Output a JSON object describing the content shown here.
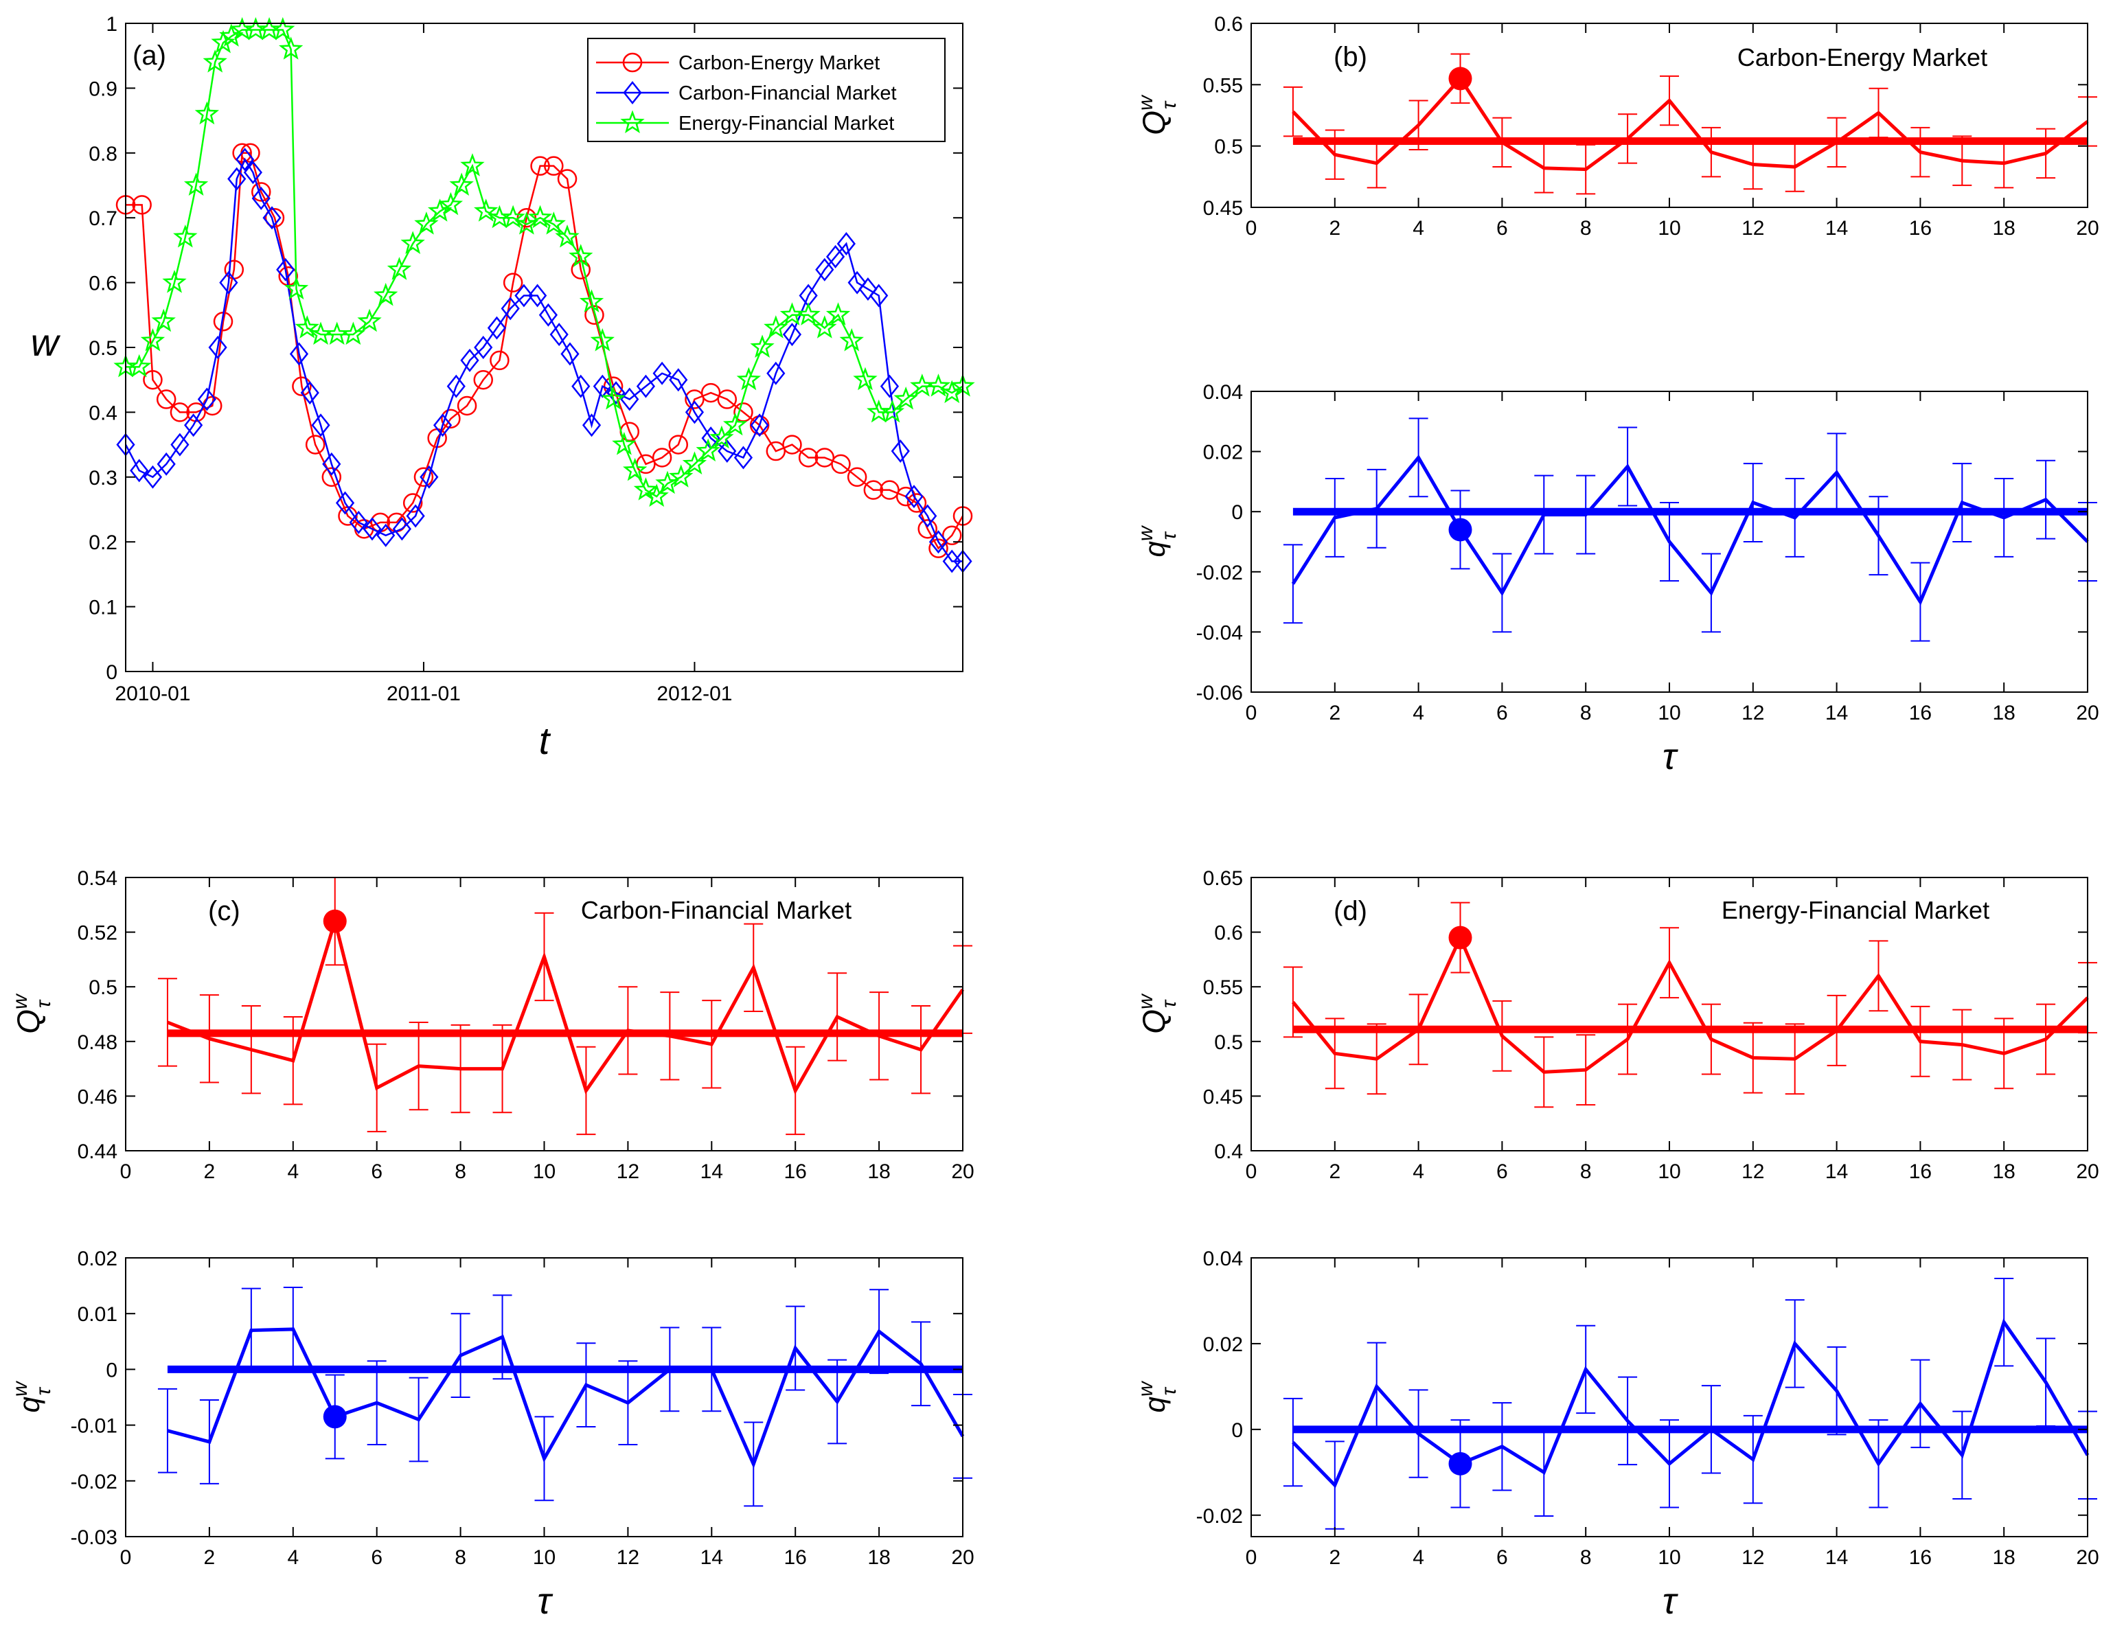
{
  "colors": {
    "ce": "#ff0000",
    "cf": "#0000ff",
    "ef": "#00ff00",
    "axis": "#000000"
  },
  "chart_data": [
    {
      "type": "line",
      "panel": "(a)",
      "title": "",
      "xlabel": "t",
      "ylabel": "w",
      "xlim": [
        2009.9,
        2012.99
      ],
      "ylim": [
        0,
        1
      ],
      "xticks": [
        2010.0,
        2011.0,
        2012.0
      ],
      "xticklabels": [
        "2010-01",
        "2011-01",
        "2012-01"
      ],
      "yticks": [
        0,
        0.1,
        0.2,
        0.3,
        0.4,
        0.5,
        0.6,
        0.7,
        0.8,
        0.9,
        1
      ],
      "yticklabels": [
        "0",
        "0.1",
        "0.2",
        "0.3",
        "0.4",
        "0.5",
        "0.6",
        "0.7",
        "0.8",
        "0.9",
        "1"
      ],
      "legend": "top-right",
      "series": [
        {
          "name": "Carbon-Energy Market",
          "color": "#ff0000",
          "marker": "circle",
          "x": [
            2009.9,
            2009.96,
            2010.0,
            2010.05,
            2010.1,
            2010.16,
            2010.22,
            2010.26,
            2010.3,
            2010.33,
            2010.36,
            2010.4,
            2010.45,
            2010.5,
            2010.55,
            2010.6,
            2010.66,
            2010.72,
            2010.78,
            2010.84,
            2010.9,
            2010.96,
            2011.0,
            2011.05,
            2011.1,
            2011.16,
            2011.22,
            2011.28,
            2011.33,
            2011.38,
            2011.43,
            2011.48,
            2011.53,
            2011.58,
            2011.63,
            2011.7,
            2011.76,
            2011.82,
            2011.88,
            2011.94,
            2012.0,
            2012.06,
            2012.12,
            2012.18,
            2012.24,
            2012.3,
            2012.36,
            2012.42,
            2012.48,
            2012.54,
            2012.6,
            2012.66,
            2012.72,
            2012.78,
            2012.82,
            2012.86,
            2012.9,
            2012.95,
            2012.99
          ],
          "y": [
            0.72,
            0.72,
            0.45,
            0.42,
            0.4,
            0.4,
            0.41,
            0.54,
            0.62,
            0.8,
            0.8,
            0.74,
            0.7,
            0.61,
            0.44,
            0.35,
            0.3,
            0.24,
            0.22,
            0.23,
            0.23,
            0.26,
            0.3,
            0.36,
            0.39,
            0.41,
            0.45,
            0.48,
            0.6,
            0.7,
            0.78,
            0.78,
            0.76,
            0.62,
            0.55,
            0.44,
            0.37,
            0.32,
            0.33,
            0.35,
            0.42,
            0.43,
            0.42,
            0.4,
            0.38,
            0.34,
            0.35,
            0.33,
            0.33,
            0.32,
            0.3,
            0.28,
            0.28,
            0.27,
            0.26,
            0.22,
            0.19,
            0.21,
            0.24
          ]
        },
        {
          "name": "Carbon-Financial Market",
          "color": "#0000ff",
          "marker": "diamond",
          "x": [
            2009.9,
            2009.95,
            2010.0,
            2010.05,
            2010.1,
            2010.15,
            2010.2,
            2010.24,
            2010.28,
            2010.31,
            2010.34,
            2010.37,
            2010.4,
            2010.44,
            2010.49,
            2010.54,
            2010.58,
            2010.62,
            2010.66,
            2010.71,
            2010.76,
            2010.81,
            2010.86,
            2010.92,
            2010.97,
            2011.02,
            2011.07,
            2011.12,
            2011.17,
            2011.22,
            2011.27,
            2011.32,
            2011.37,
            2011.42,
            2011.46,
            2011.5,
            2011.54,
            2011.58,
            2011.62,
            2011.66,
            2011.71,
            2011.76,
            2011.82,
            2011.88,
            2011.94,
            2012.0,
            2012.06,
            2012.12,
            2012.18,
            2012.24,
            2012.3,
            2012.36,
            2012.42,
            2012.48,
            2012.52,
            2012.56,
            2012.6,
            2012.64,
            2012.68,
            2012.72,
            2012.76,
            2012.81,
            2012.86,
            2012.9,
            2012.95,
            2012.99
          ],
          "y": [
            0.35,
            0.31,
            0.3,
            0.32,
            0.35,
            0.38,
            0.42,
            0.5,
            0.6,
            0.76,
            0.79,
            0.77,
            0.73,
            0.7,
            0.62,
            0.49,
            0.43,
            0.38,
            0.32,
            0.26,
            0.23,
            0.22,
            0.21,
            0.22,
            0.24,
            0.3,
            0.38,
            0.44,
            0.48,
            0.5,
            0.53,
            0.56,
            0.58,
            0.58,
            0.55,
            0.52,
            0.49,
            0.44,
            0.38,
            0.44,
            0.43,
            0.42,
            0.44,
            0.46,
            0.45,
            0.4,
            0.36,
            0.34,
            0.33,
            0.38,
            0.46,
            0.52,
            0.58,
            0.62,
            0.64,
            0.66,
            0.6,
            0.59,
            0.58,
            0.44,
            0.34,
            0.27,
            0.24,
            0.2,
            0.17,
            0.17
          ]
        },
        {
          "name": "Energy-Financial Market",
          "color": "#00ff00",
          "marker": "star",
          "x": [
            2009.9,
            2009.95,
            2010.0,
            2010.04,
            2010.08,
            2010.12,
            2010.16,
            2010.2,
            2010.23,
            2010.26,
            2010.29,
            2010.33,
            2010.38,
            2010.43,
            2010.48,
            2010.51,
            2010.53,
            2010.57,
            2010.62,
            2010.68,
            2010.74,
            2010.8,
            2010.86,
            2010.91,
            2010.96,
            2011.01,
            2011.06,
            2011.1,
            2011.14,
            2011.18,
            2011.23,
            2011.28,
            2011.33,
            2011.38,
            2011.43,
            2011.48,
            2011.53,
            2011.58,
            2011.62,
            2011.66,
            2011.7,
            2011.74,
            2011.78,
            2011.82,
            2011.86,
            2011.9,
            2011.95,
            2012.0,
            2012.05,
            2012.1,
            2012.15,
            2012.2,
            2012.25,
            2012.3,
            2012.36,
            2012.42,
            2012.48,
            2012.53,
            2012.58,
            2012.63,
            2012.68,
            2012.73,
            2012.78,
            2012.84,
            2012.9,
            2012.95,
            2012.99
          ],
          "y": [
            0.47,
            0.47,
            0.51,
            0.54,
            0.6,
            0.67,
            0.75,
            0.86,
            0.94,
            0.97,
            0.98,
            0.99,
            0.99,
            0.99,
            0.99,
            0.96,
            0.59,
            0.53,
            0.52,
            0.52,
            0.52,
            0.54,
            0.58,
            0.62,
            0.66,
            0.69,
            0.71,
            0.72,
            0.75,
            0.78,
            0.71,
            0.7,
            0.7,
            0.69,
            0.7,
            0.69,
            0.67,
            0.64,
            0.57,
            0.51,
            0.42,
            0.35,
            0.31,
            0.28,
            0.27,
            0.29,
            0.3,
            0.32,
            0.34,
            0.36,
            0.38,
            0.45,
            0.5,
            0.53,
            0.55,
            0.55,
            0.53,
            0.55,
            0.51,
            0.45,
            0.4,
            0.4,
            0.42,
            0.44,
            0.44,
            0.43,
            0.44
          ]
        }
      ]
    },
    {
      "type": "line",
      "panel": "(b)",
      "title": "Carbon-Energy Market",
      "xlabel": "",
      "ylabel": "Q_τ^w",
      "xlim": [
        0,
        20
      ],
      "ylim": [
        0.45,
        0.6
      ],
      "xticks": [
        0,
        2,
        4,
        6,
        8,
        10,
        12,
        14,
        16,
        18,
        20
      ],
      "yticks": [
        0.45,
        0.5,
        0.55,
        0.6
      ],
      "yticklabels": [
        "0.45",
        "0.5",
        "0.55",
        "0.6"
      ],
      "color": "#ff0000",
      "mean": 0.504,
      "highlight": {
        "x": 5,
        "y": 0.555
      },
      "x": [
        1,
        2,
        3,
        4,
        5,
        6,
        7,
        8,
        9,
        10,
        11,
        12,
        13,
        14,
        15,
        16,
        17,
        18,
        19,
        20
      ],
      "y": [
        0.528,
        0.493,
        0.486,
        0.517,
        0.555,
        0.503,
        0.482,
        0.481,
        0.506,
        0.537,
        0.495,
        0.485,
        0.483,
        0.503,
        0.527,
        0.495,
        0.488,
        0.486,
        0.494,
        0.52
      ],
      "err": [
        0.02,
        0.02,
        0.02,
        0.02,
        0.02,
        0.02,
        0.02,
        0.02,
        0.02,
        0.02,
        0.02,
        0.02,
        0.02,
        0.02,
        0.02,
        0.02,
        0.02,
        0.02,
        0.02,
        0.02
      ]
    },
    {
      "type": "line",
      "panel": "",
      "title": "",
      "xlabel": "τ",
      "ylabel": "q_τ^w",
      "xlim": [
        0,
        20
      ],
      "ylim": [
        -0.06,
        0.04
      ],
      "xticks": [
        0,
        2,
        4,
        6,
        8,
        10,
        12,
        14,
        16,
        18,
        20
      ],
      "yticks": [
        -0.06,
        -0.04,
        -0.02,
        0,
        0.02,
        0.04
      ],
      "yticklabels": [
        "-0.06",
        "-0.04",
        "-0.02",
        "0",
        "0.02",
        "0.04"
      ],
      "color": "#0000ff",
      "mean": 0.0,
      "highlight": {
        "x": 5,
        "y": -0.006
      },
      "x": [
        1,
        2,
        3,
        4,
        5,
        6,
        7,
        8,
        9,
        10,
        11,
        12,
        13,
        14,
        15,
        16,
        17,
        18,
        19,
        20
      ],
      "y": [
        -0.024,
        -0.002,
        0.001,
        0.018,
        -0.006,
        -0.027,
        -0.001,
        -0.001,
        0.015,
        -0.01,
        -0.027,
        0.003,
        -0.002,
        0.013,
        -0.008,
        -0.03,
        0.003,
        -0.002,
        0.004,
        -0.01
      ],
      "err": [
        0.013,
        0.013,
        0.013,
        0.013,
        0.013,
        0.013,
        0.013,
        0.013,
        0.013,
        0.013,
        0.013,
        0.013,
        0.013,
        0.013,
        0.013,
        0.013,
        0.013,
        0.013,
        0.013,
        0.013
      ]
    },
    {
      "type": "line",
      "panel": "(c)",
      "title": "Carbon-Financial Market",
      "xlabel": "",
      "ylabel": "Q_τ^w",
      "xlim": [
        0,
        20
      ],
      "ylim": [
        0.44,
        0.54
      ],
      "xticks": [
        0,
        2,
        4,
        6,
        8,
        10,
        12,
        14,
        16,
        18,
        20
      ],
      "yticks": [
        0.44,
        0.46,
        0.48,
        0.5,
        0.52,
        0.54
      ],
      "yticklabels": [
        "0.44",
        "0.46",
        "0.48",
        "0.5",
        "0.52",
        "0.54"
      ],
      "color": "#ff0000",
      "mean": 0.483,
      "highlight": {
        "x": 5,
        "y": 0.524
      },
      "x": [
        1,
        2,
        3,
        4,
        5,
        6,
        7,
        8,
        9,
        10,
        11,
        12,
        13,
        14,
        15,
        16,
        17,
        18,
        19,
        20
      ],
      "y": [
        0.487,
        0.481,
        0.477,
        0.473,
        0.524,
        0.463,
        0.471,
        0.47,
        0.47,
        0.511,
        0.462,
        0.484,
        0.482,
        0.479,
        0.507,
        0.462,
        0.489,
        0.482,
        0.477,
        0.499
      ],
      "err": [
        0.016,
        0.016,
        0.016,
        0.016,
        0.016,
        0.016,
        0.016,
        0.016,
        0.016,
        0.016,
        0.016,
        0.016,
        0.016,
        0.016,
        0.016,
        0.016,
        0.016,
        0.016,
        0.016,
        0.016
      ]
    },
    {
      "type": "line",
      "panel": "",
      "title": "",
      "xlabel": "τ",
      "ylabel": "q_τ^w",
      "xlim": [
        0,
        20
      ],
      "ylim": [
        -0.03,
        0.02
      ],
      "xticks": [
        0,
        2,
        4,
        6,
        8,
        10,
        12,
        14,
        16,
        18,
        20
      ],
      "yticks": [
        -0.03,
        -0.02,
        -0.01,
        0,
        0.01,
        0.02
      ],
      "yticklabels": [
        "-0.03",
        "-0.02",
        "-0.01",
        "0",
        "0.01",
        "0.02"
      ],
      "color": "#0000ff",
      "mean": 0.0,
      "highlight": {
        "x": 5,
        "y": -0.0085
      },
      "x": [
        1,
        2,
        3,
        4,
        5,
        6,
        7,
        8,
        9,
        10,
        11,
        12,
        13,
        14,
        15,
        16,
        17,
        18,
        19,
        20
      ],
      "y": [
        -0.011,
        -0.013,
        0.007,
        0.0072,
        -0.0085,
        -0.006,
        -0.009,
        0.0025,
        0.0058,
        -0.016,
        -0.0028,
        -0.006,
        0.0,
        0.0,
        -0.017,
        0.0038,
        -0.0058,
        0.0068,
        0.001,
        -0.012
      ],
      "err": [
        0.0075,
        0.0075,
        0.0075,
        0.0075,
        0.0075,
        0.0075,
        0.0075,
        0.0075,
        0.0075,
        0.0075,
        0.0075,
        0.0075,
        0.0075,
        0.0075,
        0.0075,
        0.0075,
        0.0075,
        0.0075,
        0.0075,
        0.0075
      ]
    },
    {
      "type": "line",
      "panel": "(d)",
      "title": "Energy-Financial Market",
      "xlabel": "",
      "ylabel": "Q_τ^w",
      "xlim": [
        0,
        20
      ],
      "ylim": [
        0.4,
        0.65
      ],
      "xticks": [
        0,
        2,
        4,
        6,
        8,
        10,
        12,
        14,
        16,
        18,
        20
      ],
      "yticks": [
        0.4,
        0.45,
        0.5,
        0.55,
        0.6,
        0.65
      ],
      "yticklabels": [
        "0.4",
        "0.45",
        "0.5",
        "0.55",
        "0.6",
        "0.65"
      ],
      "color": "#ff0000",
      "mean": 0.511,
      "highlight": {
        "x": 5,
        "y": 0.595
      },
      "x": [
        1,
        2,
        3,
        4,
        5,
        6,
        7,
        8,
        9,
        10,
        11,
        12,
        13,
        14,
        15,
        16,
        17,
        18,
        19,
        20
      ],
      "y": [
        0.536,
        0.489,
        0.484,
        0.511,
        0.595,
        0.505,
        0.472,
        0.474,
        0.502,
        0.572,
        0.502,
        0.485,
        0.484,
        0.51,
        0.56,
        0.5,
        0.497,
        0.489,
        0.502,
        0.54
      ],
      "err": [
        0.032,
        0.032,
        0.032,
        0.032,
        0.032,
        0.032,
        0.032,
        0.032,
        0.032,
        0.032,
        0.032,
        0.032,
        0.032,
        0.032,
        0.032,
        0.032,
        0.032,
        0.032,
        0.032,
        0.032
      ]
    },
    {
      "type": "line",
      "panel": "",
      "title": "",
      "xlabel": "τ",
      "ylabel": "q_τ^w",
      "xlim": [
        0,
        20
      ],
      "ylim": [
        -0.025,
        0.04
      ],
      "xticks": [
        0,
        2,
        4,
        6,
        8,
        10,
        12,
        14,
        16,
        18,
        20
      ],
      "yticks": [
        -0.02,
        0,
        0.02,
        0.04
      ],
      "yticklabels": [
        "-0.02",
        "0",
        "0.02",
        "0.04"
      ],
      "color": "#0000ff",
      "mean": 0.0,
      "highlight": {
        "x": 5,
        "y": -0.008
      },
      "x": [
        1,
        2,
        3,
        4,
        5,
        6,
        7,
        8,
        9,
        10,
        11,
        12,
        13,
        14,
        15,
        16,
        17,
        18,
        19,
        20
      ],
      "y": [
        -0.003,
        -0.013,
        0.01,
        -0.001,
        -0.008,
        -0.004,
        -0.01,
        0.014,
        0.002,
        -0.008,
        0.0,
        -0.007,
        0.02,
        0.009,
        -0.008,
        0.006,
        -0.006,
        0.025,
        0.011,
        -0.006
      ],
      "err": [
        0.0102,
        0.0102,
        0.0102,
        0.0102,
        0.0102,
        0.0102,
        0.0102,
        0.0102,
        0.0102,
        0.0102,
        0.0102,
        0.0102,
        0.0102,
        0.0102,
        0.0102,
        0.0102,
        0.0102,
        0.0102,
        0.0102,
        0.0102
      ]
    }
  ]
}
